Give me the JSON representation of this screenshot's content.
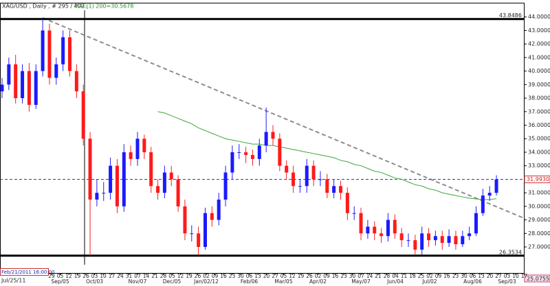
{
  "chart_data": {
    "type": "candlestick",
    "title": "XAG/USD , Daily , # 295 / 402 ,",
    "indicator_label": "MAE(1) 200=30.5678",
    "up_color": "#1a1aff",
    "down_color": "#ff1a1a",
    "open": [
      38.5,
      39,
      40.5,
      38,
      40,
      37.5,
      40,
      43,
      39.5,
      40.5,
      42.5,
      40,
      38.5,
      35,
      30.5,
      31,
      31,
      33,
      30,
      34,
      33.5,
      35,
      34,
      31.5,
      31,
      32.5,
      32,
      30,
      28,
      28,
      27,
      29.5,
      29,
      30.5,
      32.5,
      34,
      34,
      33.8,
      33.5,
      34.5,
      35.5,
      35,
      33,
      32.5,
      31.5,
      31.5,
      33,
      32,
      32,
      31,
      31.5,
      31,
      29.5,
      29.5,
      28,
      28.5,
      28,
      27.8,
      29,
      28,
      27.5,
      27.5,
      26.8,
      28,
      27.5,
      27.8,
      27.3,
      27.8,
      27.2,
      27.8,
      28,
      29.5,
      30.8,
      31.0
    ],
    "high": [
      39.5,
      41.0,
      41.2,
      40.5,
      40.6,
      40.5,
      43.85,
      43.5,
      41.0,
      43.0,
      43.0,
      40.5,
      39.0,
      35.5,
      32.0,
      31.8,
      33.6,
      33.5,
      34.6,
      34.5,
      35.5,
      35.3,
      34.4,
      32.0,
      33.0,
      33.0,
      32.3,
      30.5,
      28.6,
      28.5,
      29.9,
      30.0,
      31.0,
      33.0,
      34.5,
      34.6,
      34.4,
      34.2,
      35.0,
      37.3,
      36.0,
      35.4,
      33.4,
      33.0,
      32.0,
      33.5,
      33.4,
      32.6,
      32.4,
      32.0,
      31.9,
      31.4,
      30.0,
      29.9,
      29.0,
      28.9,
      28.4,
      29.5,
      29.4,
      28.4,
      28.0,
      27.9,
      28.5,
      28.4,
      28.2,
      28.2,
      28.3,
      28.2,
      28.2,
      28.5,
      30.0,
      31.3,
      31.5,
      32.3
    ],
    "low": [
      38.0,
      38.6,
      37.6,
      37.6,
      37.0,
      37.2,
      39.6,
      39.0,
      39.0,
      40.0,
      39.6,
      38.0,
      34.5,
      26.35,
      30.0,
      30.4,
      30.5,
      29.5,
      29.6,
      33.0,
      33.0,
      33.5,
      31.0,
      30.5,
      30.6,
      31.5,
      29.6,
      27.5,
      27.4,
      26.4,
      26.8,
      28.5,
      28.6,
      30.0,
      32.0,
      33.5,
      33.2,
      33.0,
      33.0,
      34.0,
      34.5,
      32.6,
      32.0,
      31.0,
      31.0,
      31.0,
      31.5,
      31.5,
      30.6,
      30.6,
      30.5,
      29.0,
      29.0,
      27.5,
      27.6,
      27.5,
      27.3,
      27.4,
      27.6,
      27.0,
      27.0,
      26.4,
      26.4,
      27.0,
      27.1,
      26.8,
      27.0,
      26.8,
      27.0,
      27.5,
      27.8,
      29.3,
      30.4,
      30.8
    ],
    "close": [
      39.0,
      40.5,
      38.0,
      40.0,
      37.5,
      40.0,
      43.0,
      39.5,
      40.5,
      42.5,
      40.0,
      38.5,
      35.0,
      30.5,
      31.0,
      31.0,
      33.0,
      30.0,
      34.0,
      33.5,
      35.0,
      34.0,
      31.5,
      31.0,
      32.5,
      32.0,
      30.0,
      28.0,
      28.0,
      27.0,
      29.5,
      29.0,
      30.5,
      32.5,
      34.0,
      34.0,
      33.8,
      33.5,
      34.5,
      35.5,
      35.0,
      33.0,
      32.5,
      31.5,
      31.5,
      33.0,
      32.0,
      32.0,
      31.0,
      31.5,
      31.0,
      29.5,
      29.5,
      28.0,
      28.5,
      28.0,
      27.8,
      29.0,
      28.0,
      27.5,
      27.5,
      26.8,
      28.0,
      27.5,
      27.8,
      27.3,
      27.8,
      27.2,
      27.8,
      28.0,
      29.5,
      30.8,
      31.0,
      31.99
    ],
    "ma": {
      "color": "#3aa63a",
      "values": [
        null,
        null,
        null,
        null,
        null,
        null,
        null,
        null,
        null,
        null,
        null,
        null,
        null,
        null,
        null,
        null,
        null,
        null,
        null,
        null,
        null,
        null,
        null,
        37.0,
        36.9,
        36.7,
        36.5,
        36.3,
        36.1,
        35.8,
        35.6,
        35.4,
        35.2,
        35.0,
        34.9,
        34.8,
        34.7,
        34.6,
        34.6,
        34.5,
        34.5,
        34.4,
        34.3,
        34.2,
        34.1,
        34.0,
        33.9,
        33.8,
        33.7,
        33.6,
        33.4,
        33.3,
        33.1,
        33.0,
        32.8,
        32.6,
        32.5,
        32.3,
        32.1,
        32.0,
        31.8,
        31.6,
        31.5,
        31.3,
        31.2,
        31.0,
        30.9,
        30.8,
        30.7,
        30.6,
        30.55,
        30.5,
        30.5,
        30.57
      ]
    },
    "ylim": [
      25.0755,
      45
    ],
    "yticks": [
      {
        "value": 27,
        "label": "27.0000"
      },
      {
        "value": 28,
        "label": "28.0000"
      },
      {
        "value": 29,
        "label": "29.0000"
      },
      {
        "value": 30,
        "label": "30.0000"
      },
      {
        "value": 31,
        "label": "31.0000"
      },
      {
        "value": 32,
        "label": "32.0000"
      },
      {
        "value": 33,
        "label": "33.0000"
      },
      {
        "value": 34,
        "label": "34.0000"
      },
      {
        "value": 35,
        "label": "35.0000"
      },
      {
        "value": 36,
        "label": "36.0000"
      },
      {
        "value": 37,
        "label": "37.0000"
      },
      {
        "value": 38,
        "label": "38.0000"
      },
      {
        "value": 39,
        "label": "39.0000"
      },
      {
        "value": 40,
        "label": "40.0000"
      },
      {
        "value": 41,
        "label": "41.0000"
      },
      {
        "value": 42,
        "label": "42.0000"
      },
      {
        "value": 43,
        "label": "43.0000"
      },
      {
        "value": 44,
        "label": "44.0000"
      }
    ],
    "bottom_tick": {
      "value": 25.0755,
      "label": "25.0755"
    },
    "levels": [
      {
        "value": 43.8486,
        "label": "43.8486",
        "style": "solid",
        "color": "#000000"
      },
      {
        "value": 26.3534,
        "label": "26.3534",
        "style": "solid",
        "color": "#000000"
      },
      {
        "value": 31.993,
        "label": "31.9930",
        "style": "dashed",
        "color": "#3333cc"
      }
    ],
    "week_labels": [
      "29",
      "05",
      "12",
      "19",
      "26",
      "03",
      "10",
      "17",
      "24",
      "31",
      "07",
      "14",
      "21",
      "28",
      "05",
      "12",
      "19",
      "26",
      "02",
      "09",
      "16",
      "23",
      "30",
      "06",
      "13",
      "20",
      "27",
      "05",
      "12",
      "19",
      "26",
      "02",
      "09",
      "16",
      "23",
      "30",
      "07",
      "14",
      "21",
      "28",
      "04",
      "11",
      "18",
      "25",
      "02",
      "09",
      "16",
      "23",
      "30",
      "06",
      "13",
      "20",
      "27",
      "03",
      "10",
      "17"
    ],
    "month_labels": [
      null,
      "Sep/05",
      null,
      null,
      null,
      "Oct/03",
      null,
      null,
      null,
      null,
      "Nov/07",
      null,
      null,
      null,
      "Dec/05",
      null,
      null,
      null,
      "Jan/02/12",
      null,
      null,
      null,
      null,
      "Feb/06",
      null,
      null,
      null,
      "Mar/05",
      null,
      null,
      null,
      "Apr/02",
      null,
      null,
      null,
      null,
      "May/07",
      null,
      null,
      null,
      "Jun/04",
      null,
      null,
      null,
      "Jul/02",
      null,
      null,
      null,
      null,
      "Aug/06",
      null,
      null,
      null,
      "Sep/03",
      null,
      null
    ],
    "start_label": "Jul/25/11",
    "cursor_label": "Feb/21/2011 16:00:00"
  }
}
